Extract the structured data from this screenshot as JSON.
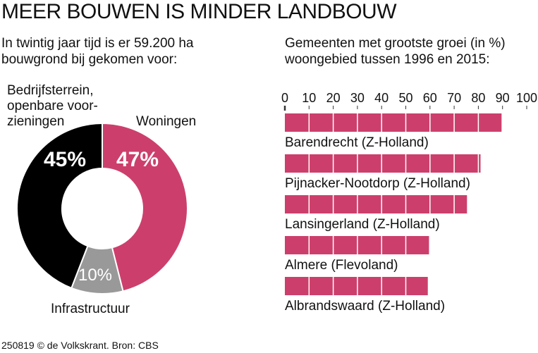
{
  "title": "MEER BOUWEN IS MINDER LANDBOUW",
  "left_subtitle": [
    "In twintig jaar tijd is er 59.200 ha",
    "bouwgrond bij gekomen voor:"
  ],
  "right_subtitle": [
    "Gemeenten met grootste groei (in %)",
    "woongebied tussen 1996 en 2015:"
  ],
  "footer": "250819 © de Volkskrant. Bron: CBS",
  "colors": {
    "pink": "#cc3f6c",
    "gray": "#999999",
    "black": "#000000"
  },
  "chart_data": [
    {
      "type": "pie",
      "title": "In twintig jaar tijd is er 59.200 ha bouwgrond bij gekomen voor:",
      "slices": [
        {
          "label": "Woningen",
          "value": 47,
          "value_label": "47%",
          "color": "#cc3f6c"
        },
        {
          "label": "Infrastructuur",
          "value": 10,
          "value_label": "10%",
          "color": "#999999"
        },
        {
          "label_lines": [
            "Bedrijfsterrein,",
            "openbare voor-",
            "zieningen"
          ],
          "value": 45,
          "value_label": "45%",
          "color": "#000000"
        }
      ]
    },
    {
      "type": "bar",
      "orientation": "horizontal",
      "title": "Gemeenten met grootste groei (in %) woongebied tussen 1996 en 2015:",
      "xlim": [
        0,
        100
      ],
      "ticks": [
        "0",
        "10",
        "20",
        "30",
        "40",
        "50",
        "60",
        "70",
        "80",
        "90",
        "100"
      ],
      "categories": [
        "Barendrecht (Z-Holland)",
        "Pijnacker-Nootdorp (Z-Holland)",
        "Lansingerland (Z-Holland)",
        "Almere (Flevoland)",
        "Albrandswaard (Z-Holland)"
      ],
      "values": [
        89.6,
        80.9,
        75.3,
        59.6,
        59.1
      ]
    }
  ]
}
